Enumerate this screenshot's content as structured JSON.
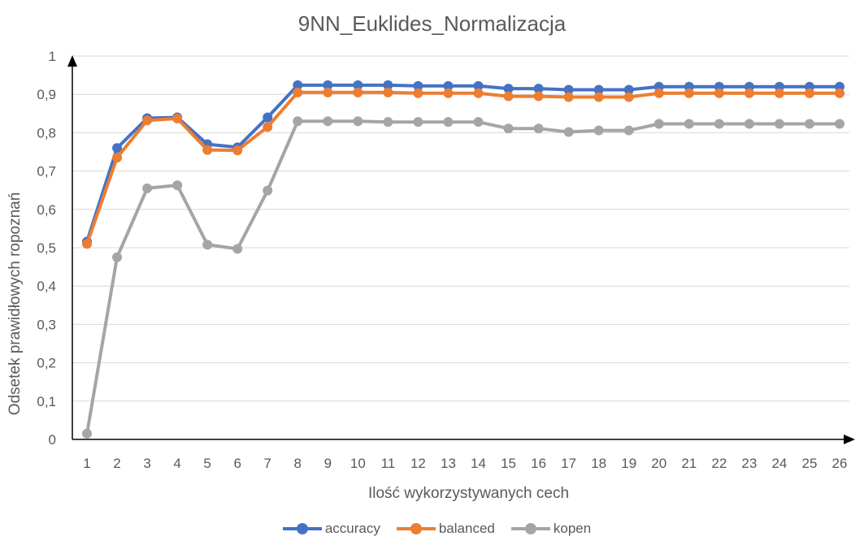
{
  "chart_data": {
    "type": "line",
    "title": "9NN_Euklides_Normalizacja",
    "xlabel": "Ilość wykorzystywanych cech",
    "ylabel": "Odsetek prawidłowych ropoznań",
    "ylim": [
      0,
      1
    ],
    "yticks": [
      "0",
      "0,1",
      "0,2",
      "0,3",
      "0,4",
      "0,5",
      "0,6",
      "0,7",
      "0,8",
      "0,9",
      "1"
    ],
    "categories": [
      "1",
      "2",
      "3",
      "4",
      "5",
      "6",
      "7",
      "8",
      "9",
      "10",
      "11",
      "12",
      "13",
      "14",
      "15",
      "16",
      "17",
      "18",
      "19",
      "20",
      "21",
      "22",
      "23",
      "24",
      "25",
      "26"
    ],
    "grid": true,
    "legend_position": "bottom",
    "series": [
      {
        "name": "accuracy",
        "color": "#4472C4",
        "values": [
          0.516,
          0.76,
          0.838,
          0.84,
          0.77,
          0.762,
          0.84,
          0.924,
          0.924,
          0.924,
          0.924,
          0.922,
          0.922,
          0.922,
          0.915,
          0.915,
          0.912,
          0.912,
          0.912,
          0.92,
          0.92,
          0.92,
          0.92,
          0.92,
          0.92,
          0.92
        ]
      },
      {
        "name": "balanced",
        "color": "#ED7D31",
        "values": [
          0.51,
          0.735,
          0.832,
          0.837,
          0.755,
          0.754,
          0.815,
          0.905,
          0.905,
          0.905,
          0.905,
          0.903,
          0.903,
          0.903,
          0.895,
          0.895,
          0.893,
          0.893,
          0.893,
          0.903,
          0.903,
          0.903,
          0.903,
          0.903,
          0.903,
          0.903
        ]
      },
      {
        "name": "kopen",
        "color": "#A5A5A5",
        "values": [
          0.015,
          0.475,
          0.655,
          0.663,
          0.508,
          0.497,
          0.649,
          0.83,
          0.83,
          0.83,
          0.828,
          0.828,
          0.828,
          0.828,
          0.811,
          0.811,
          0.802,
          0.806,
          0.806,
          0.823,
          0.823,
          0.823,
          0.823,
          0.823,
          0.823,
          0.823
        ]
      }
    ]
  }
}
